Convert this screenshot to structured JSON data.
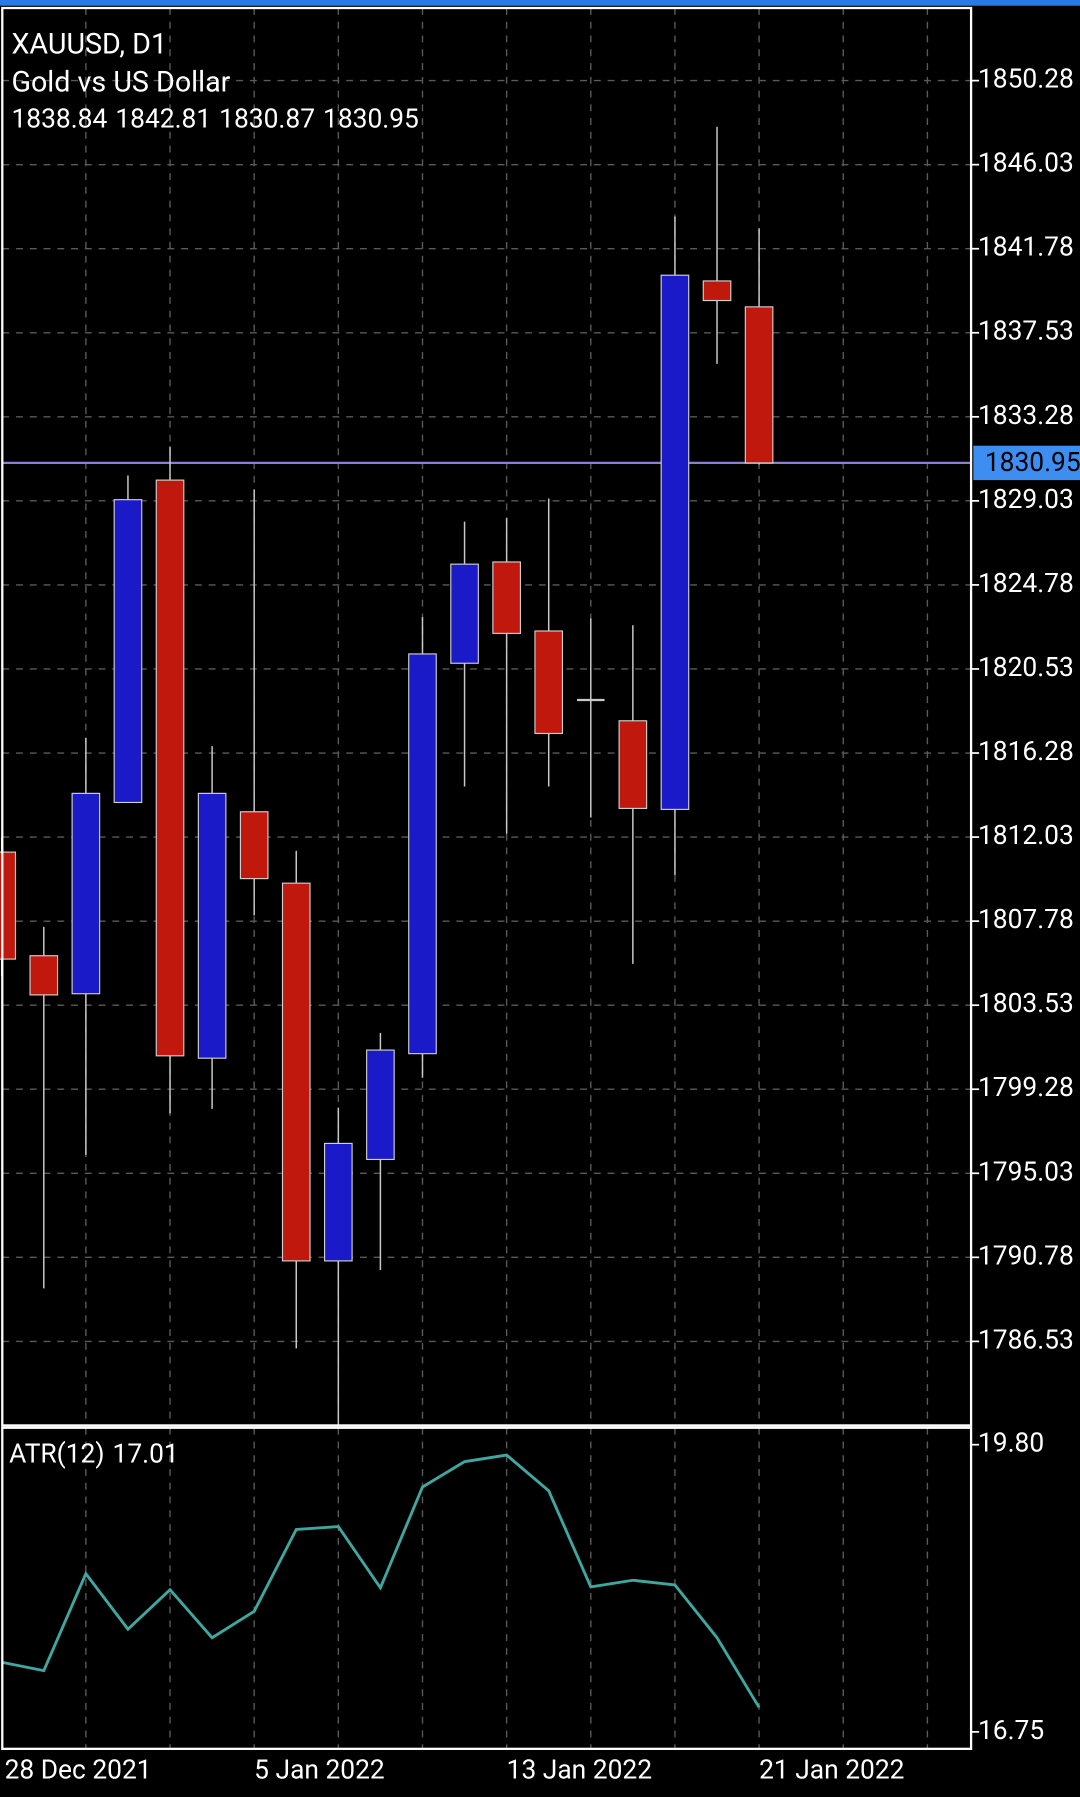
{
  "chart_data": [
    {
      "type": "candlestick",
      "title": "XAUUSD, D1",
      "subtitle": "Gold vs US Dollar",
      "categories": [
        "28 Dec 2021",
        null,
        null,
        null,
        null,
        null,
        "5 Jan 2022",
        null,
        null,
        null,
        null,
        null,
        "13 Jan 2022",
        null,
        null,
        null,
        null,
        null,
        "21 Jan 2022"
      ],
      "open": [
        1811.27,
        1806.03,
        1804.11,
        1813.78,
        1830.08,
        1800.85,
        1813.31,
        1809.7,
        1790.6,
        1795.73,
        1801.08,
        1820.82,
        1825.94,
        1822.45,
        1818.96,
        1817.91,
        1813.43,
        1840.15,
        1838.84
      ],
      "high": [
        1812.0,
        1807.49,
        1817.04,
        1830.31,
        1831.77,
        1816.63,
        1829.61,
        1811.33,
        1798.35,
        1802.13,
        1823.15,
        1827.98,
        1828.16,
        1829.15,
        1823.09,
        1822.74,
        1843.41,
        1847.95,
        1842.81
      ],
      "low": [
        1805.0,
        1789.21,
        1795.96,
        1813.78,
        1798.06,
        1798.29,
        1808.07,
        1786.18,
        1782.28,
        1790.14,
        1799.86,
        1814.59,
        1812.2,
        1814.59,
        1813.02,
        1805.62,
        1810.11,
        1835.96,
        1830.87
      ],
      "close": [
        1805.86,
        1804.05,
        1814.24,
        1829.09,
        1800.97,
        1814.24,
        1809.93,
        1790.6,
        1796.54,
        1801.26,
        1821.29,
        1825.83,
        1822.33,
        1817.27,
        1818.96,
        1813.48,
        1840.44,
        1839.16,
        1830.95
      ],
      "up_color": "#1a1ac8",
      "down_color": "#c0180c",
      "price_line_color": "#8a7fd6",
      "price_label_color": "#3d8ef0",
      "ylim": [
        1782.28,
        1853.95
      ],
      "yticks": [
        1850.28,
        1846.03,
        1841.78,
        1837.53,
        1833.28,
        1829.03,
        1824.78,
        1820.53,
        1816.28,
        1812.03,
        1807.78,
        1803.53,
        1799.28,
        1795.03,
        1790.78,
        1786.53
      ],
      "grid": true
    },
    {
      "type": "line",
      "series": [
        {
          "name": "ATR(12)",
          "color": "#3fa7a0",
          "values": [
            17.49,
            17.4,
            18.43,
            17.84,
            18.26,
            17.75,
            18.03,
            18.9,
            18.93,
            18.28,
            19.35,
            19.62,
            19.69,
            19.31,
            18.29,
            18.36,
            18.31,
            17.75,
            17.01
          ]
        }
      ],
      "ylim": [
        16.57,
        19.98
      ],
      "yticks": [
        {
          "value": 19.8,
          "label": "19.80"
        },
        16.75
      ]
    }
  ]
}
